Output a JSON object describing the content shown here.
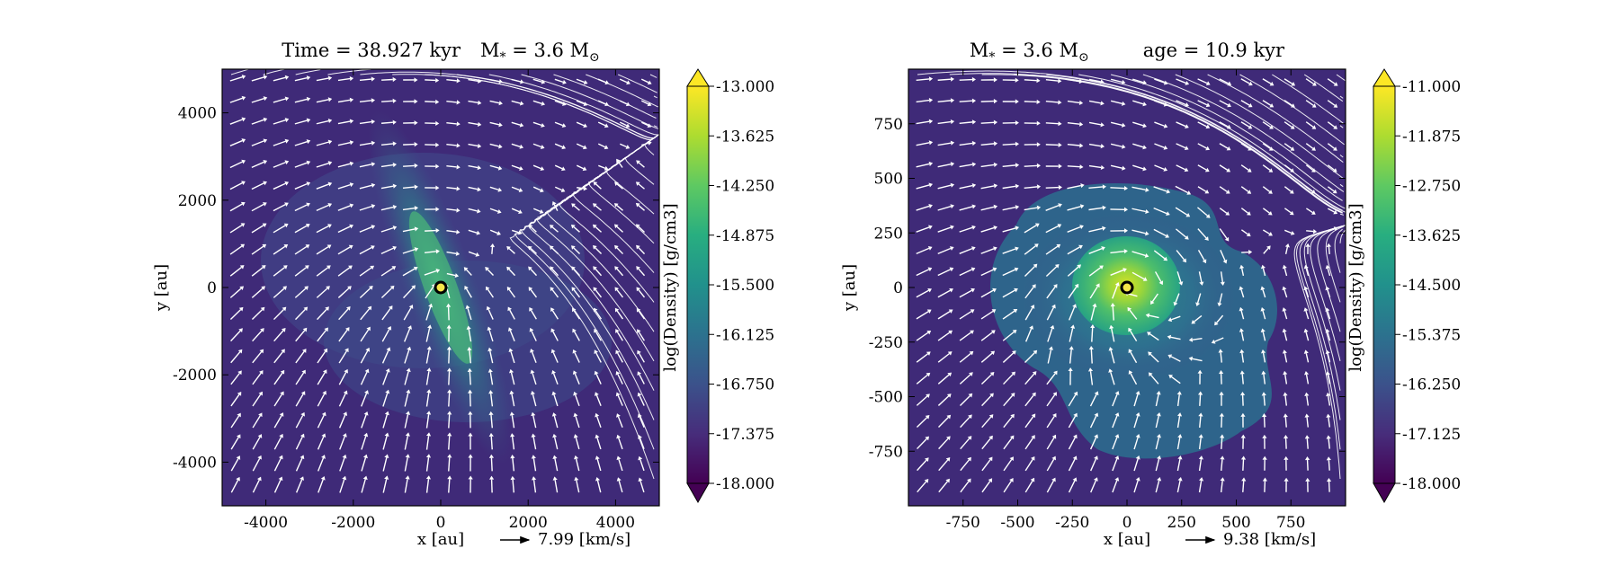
{
  "chart_data": [
    {
      "type": "heatmap",
      "title": {
        "left": "Time = 38.927 kyr",
        "right_symbol": "M",
        "right_sub": "*",
        "right_eq": " = 3.6 M",
        "right_sun": "⊙"
      },
      "xlabel": "x [au]",
      "ylabel": "y [au]",
      "xlim": [
        -5000,
        5000
      ],
      "ylim": [
        -5000,
        5000
      ],
      "xticks": [
        "-4000",
        "-2000",
        "0",
        "2000",
        "4000"
      ],
      "xtick_values": [
        -4000,
        -2000,
        0,
        2000,
        4000
      ],
      "yticks": [
        "4000",
        "2000",
        "0",
        "-2000",
        "-4000"
      ],
      "ytick_values": [
        4000,
        2000,
        0,
        -2000,
        -4000
      ],
      "velocity_key": "7.99 [km/s]",
      "colorbar": {
        "label": "log(Density) [g/cm3]",
        "range": [
          -18.0,
          -13.0
        ],
        "ticks": [
          "-13.000",
          "-13.625",
          "-14.250",
          "-14.875",
          "-15.500",
          "-16.125",
          "-16.750",
          "-17.375",
          "-18.000"
        ]
      },
      "star_position": [
        0,
        0
      ],
      "structure": "diagonal filament through the star from upper left to lower right"
    },
    {
      "type": "heatmap",
      "title": {
        "left_symbol": "M",
        "left_sub": "*",
        "left_eq": " = 3.6 M",
        "left_sun": "⊙",
        "right": "age = 10.9 kyr"
      },
      "xlabel": "x [au]",
      "ylabel": "y [au]",
      "xlim": [
        -1000,
        1000
      ],
      "ylim": [
        -1000,
        1000
      ],
      "xticks": [
        "-750",
        "-500",
        "-250",
        "0",
        "250",
        "500",
        "750"
      ],
      "xtick_values": [
        -750,
        -500,
        -250,
        0,
        250,
        500,
        750
      ],
      "yticks": [
        "750",
        "500",
        "250",
        "0",
        "-250",
        "-500",
        "-750"
      ],
      "ytick_values": [
        750,
        500,
        250,
        0,
        -250,
        -500,
        -750
      ],
      "velocity_key": "9.38 [km/s]",
      "colorbar": {
        "label": "log(Density) [g/cm3]",
        "range": [
          -18.0,
          -11.0
        ],
        "ticks": [
          "-11.000",
          "-11.875",
          "-12.750",
          "-13.625",
          "-14.500",
          "-15.375",
          "-16.250",
          "-17.125",
          "-18.000"
        ]
      },
      "star_position": [
        0,
        0
      ],
      "structure": "dense central core with envelope lobes"
    }
  ]
}
